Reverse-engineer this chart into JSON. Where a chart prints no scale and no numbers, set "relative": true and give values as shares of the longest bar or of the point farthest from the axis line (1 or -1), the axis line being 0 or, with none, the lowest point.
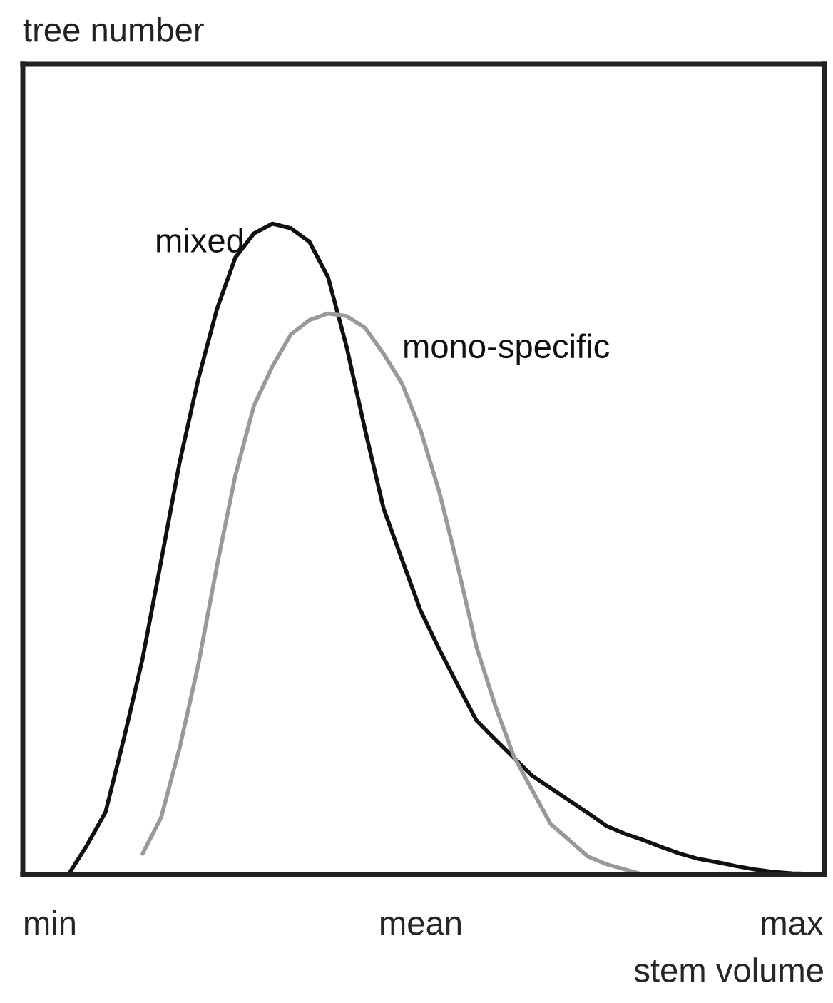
{
  "chart_data": {
    "type": "line",
    "relative": true,
    "xlabel": "stem volume",
    "annotations": [
      "tree number"
    ],
    "categories": [
      "min",
      null,
      null,
      null,
      null,
      null,
      null,
      null,
      null,
      null,
      null,
      null,
      null,
      null,
      null,
      null,
      null,
      null,
      null,
      null,
      "mean",
      null,
      null,
      null,
      null,
      null,
      null,
      null,
      null,
      null,
      null,
      null,
      null,
      null,
      null,
      null,
      null,
      null,
      null,
      null,
      "max",
      null
    ],
    "grid": false,
    "legend": false,
    "marker": "none",
    "line_style": "solid",
    "series": [
      {
        "name": "mixed",
        "color": "#111111",
        "values": [
          null,
          0,
          0.045,
          0.096,
          0.21,
          0.332,
          0.482,
          0.634,
          0.761,
          0.868,
          0.948,
          0.985,
          1,
          0.993,
          0.972,
          0.918,
          0.811,
          0.683,
          0.562,
          0.483,
          0.405,
          0.346,
          0.291,
          0.237,
          0.208,
          0.18,
          0.152,
          0.133,
          0.114,
          0.095,
          0.075,
          0.063,
          0.053,
          0.042,
          0.032,
          0.024,
          0.019,
          0.013,
          0.008,
          0.004,
          0.002,
          0.001
        ]
      },
      {
        "name": "mono-specific",
        "color": "#999999",
        "values": [
          null,
          null,
          null,
          null,
          null,
          0.032,
          0.088,
          0.195,
          0.322,
          0.473,
          0.613,
          0.72,
          0.781,
          0.83,
          0.852,
          0.862,
          0.858,
          0.84,
          0.8,
          0.754,
          0.682,
          0.588,
          0.473,
          0.35,
          0.261,
          0.183,
          0.13,
          0.078,
          0.053,
          0.028,
          0.016,
          0.008,
          0,
          null,
          null,
          null,
          null,
          null,
          null,
          null,
          null,
          null
        ]
      }
    ]
  }
}
